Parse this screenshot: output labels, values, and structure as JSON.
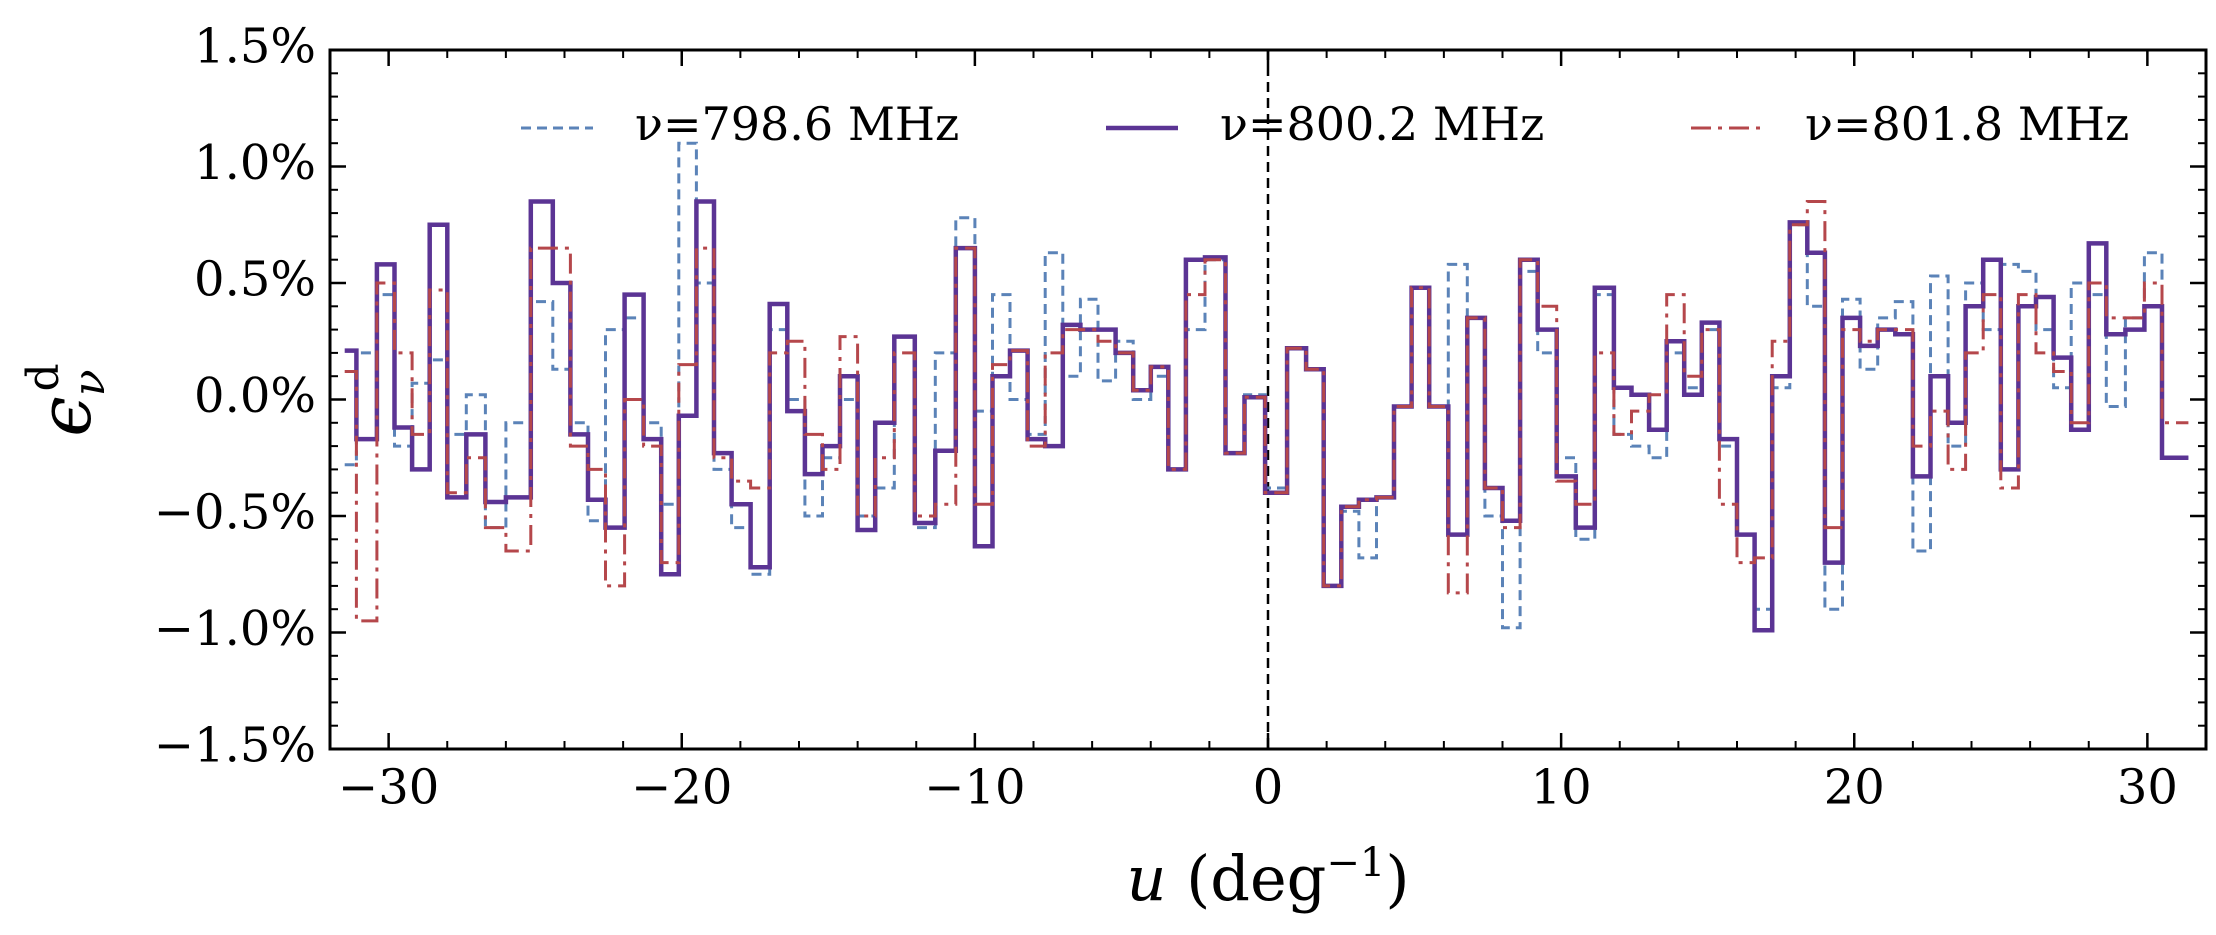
{
  "chart_data": {
    "type": "step",
    "xlabel": {
      "symbol": "u",
      "text": "(deg",
      "sup": "−1",
      "close": ")"
    },
    "ylabel": {
      "symbol": "ϵ",
      "sub": "ν",
      "sup": "d"
    },
    "xlim": [
      -32,
      32
    ],
    "ylim": [
      -1.5,
      1.5
    ],
    "xticks": [
      {
        "value": -30,
        "label": "−30"
      },
      {
        "value": -20,
        "label": "−20"
      },
      {
        "value": -10,
        "label": "−10"
      },
      0,
      10,
      20,
      30
    ],
    "yticks": [
      {
        "value": -1.5,
        "label": "−1.5%"
      },
      {
        "value": -1.0,
        "label": "−1.0%"
      },
      {
        "value": -0.5,
        "label": "−0.5%"
      },
      {
        "value": 0.0,
        "label": "0.0%"
      },
      {
        "value": 0.5,
        "label": "0.5%"
      },
      {
        "value": 1.0,
        "label": "1.0%"
      },
      {
        "value": 1.5,
        "label": "1.5%"
      }
    ],
    "vline": 0,
    "legend": "upper center",
    "x": [
      -31.5,
      -30.7,
      -30.1,
      -29.5,
      -28.9,
      -28.3,
      -27.7,
      -27.0,
      -26.4,
      -25.6,
      -24.7,
      -24.1,
      -23.5,
      -22.9,
      -22.3,
      -21.6,
      -21.0,
      -20.4,
      -19.8,
      -19.2,
      -18.6,
      -18.0,
      -17.3,
      -16.7,
      -16.1,
      -15.5,
      -14.9,
      -14.3,
      -13.7,
      -13.1,
      -12.4,
      -11.7,
      -11.0,
      -10.3,
      -9.7,
      -9.1,
      -8.5,
      -7.9,
      -7.3,
      -6.7,
      -6.1,
      -5.5,
      -4.9,
      -4.3,
      -3.7,
      -3.1,
      -2.5,
      -1.8,
      -1.1,
      -0.5,
      0.3,
      1.0,
      1.6,
      2.2,
      2.8,
      3.4,
      4.0,
      4.6,
      5.2,
      5.8,
      6.5,
      7.1,
      7.7,
      8.3,
      8.9,
      9.5,
      10.2,
      10.8,
      11.5,
      12.1,
      12.7,
      13.3,
      13.9,
      14.5,
      15.1,
      15.7,
      16.3,
      16.9,
      17.5,
      18.1,
      18.7,
      19.3,
      19.9,
      20.5,
      21.1,
      21.7,
      22.3,
      22.9,
      23.5,
      24.1,
      24.7,
      25.3,
      25.9,
      26.5,
      27.1,
      27.7,
      28.3,
      28.9,
      29.6,
      30.2,
      30.8,
      31.4
    ],
    "series": [
      {
        "name": "ν=798.6 MHz",
        "color": "#5b83b8",
        "style": "dashed",
        "values": [
          -0.28,
          0.2,
          0.45,
          -0.2,
          0.07,
          0.17,
          -0.15,
          0.02,
          -0.55,
          -0.1,
          0.42,
          0.13,
          -0.1,
          -0.52,
          0.3,
          0.35,
          -0.1,
          -0.45,
          1.1,
          0.5,
          -0.3,
          -0.55,
          -0.75,
          0.3,
          0.0,
          -0.5,
          -0.25,
          0.0,
          -0.5,
          -0.38,
          0.27,
          -0.55,
          0.2,
          0.78,
          -0.05,
          0.45,
          0.0,
          -0.15,
          0.63,
          0.1,
          0.43,
          0.08,
          0.25,
          0.0,
          0.1,
          -0.3,
          0.3,
          0.6,
          -0.23,
          0.02,
          -0.38,
          0.22,
          0.13,
          -0.8,
          -0.48,
          -0.68,
          -0.42,
          -0.03,
          0.48,
          -0.03,
          0.58,
          0.35,
          -0.5,
          -0.98,
          0.55,
          0.2,
          -0.25,
          -0.6,
          0.45,
          -0.15,
          -0.2,
          -0.25,
          0.2,
          0.05,
          0.3,
          -0.2,
          -0.58,
          -0.9,
          0.05,
          0.75,
          0.4,
          -0.9,
          0.43,
          0.13,
          0.35,
          0.42,
          -0.65,
          0.53,
          -0.2,
          0.5,
          0.3,
          0.58,
          0.55,
          0.3,
          0.05,
          0.5,
          0.45,
          -0.03,
          0.35,
          0.63,
          -0.25,
          -0.25
        ]
      },
      {
        "name": "ν=800.2 MHz",
        "color": "#5b3494",
        "style": "solid",
        "values": [
          0.21,
          -0.17,
          0.58,
          -0.12,
          -0.3,
          0.75,
          -0.42,
          -0.15,
          -0.44,
          -0.42,
          0.85,
          0.5,
          -0.15,
          -0.43,
          -0.55,
          0.45,
          -0.17,
          -0.75,
          -0.07,
          0.85,
          -0.23,
          -0.45,
          -0.72,
          0.41,
          -0.05,
          -0.32,
          -0.2,
          0.1,
          -0.56,
          -0.1,
          0.27,
          -0.53,
          -0.22,
          0.65,
          -0.63,
          0.1,
          0.21,
          -0.17,
          -0.2,
          0.32,
          0.3,
          0.3,
          0.2,
          0.04,
          0.14,
          -0.3,
          0.6,
          0.61,
          -0.23,
          0.01,
          -0.4,
          0.22,
          0.13,
          -0.8,
          -0.46,
          -0.43,
          -0.42,
          -0.03,
          0.48,
          -0.03,
          -0.58,
          0.35,
          -0.38,
          -0.52,
          0.6,
          0.3,
          -0.33,
          -0.55,
          0.48,
          0.05,
          0.02,
          -0.13,
          0.25,
          0.02,
          0.33,
          -0.17,
          -0.58,
          -0.99,
          0.1,
          0.76,
          0.63,
          -0.7,
          0.35,
          0.23,
          0.3,
          0.28,
          -0.33,
          0.1,
          -0.1,
          0.4,
          0.6,
          -0.3,
          0.4,
          0.44,
          0.18,
          -0.13,
          0.67,
          0.28,
          0.3,
          0.4,
          -0.25,
          -0.25
        ]
      },
      {
        "name": "ν=801.8 MHz",
        "color": "#b5474b",
        "style": "dashdot",
        "values": [
          0.12,
          -0.95,
          0.5,
          0.2,
          -0.15,
          0.47,
          -0.4,
          -0.25,
          -0.55,
          -0.65,
          0.65,
          0.65,
          -0.2,
          -0.3,
          -0.8,
          0.0,
          -0.2,
          -0.7,
          0.15,
          0.65,
          -0.25,
          -0.35,
          -0.38,
          0.2,
          0.25,
          -0.15,
          -0.3,
          0.27,
          -0.5,
          -0.25,
          0.2,
          -0.5,
          -0.45,
          0.65,
          -0.45,
          0.15,
          0.21,
          -0.2,
          0.2,
          0.3,
          0.3,
          0.25,
          0.2,
          0.04,
          0.14,
          -0.3,
          0.45,
          0.6,
          -0.23,
          0.01,
          -0.4,
          0.22,
          0.13,
          -0.8,
          -0.46,
          -0.43,
          -0.42,
          -0.03,
          0.48,
          -0.03,
          -0.83,
          0.35,
          -0.38,
          -0.55,
          0.6,
          0.4,
          -0.35,
          -0.45,
          0.2,
          -0.15,
          -0.05,
          0.02,
          0.45,
          0.1,
          0.3,
          -0.45,
          -0.7,
          -0.68,
          0.25,
          0.75,
          0.85,
          -0.55,
          0.3,
          0.25,
          0.3,
          0.3,
          -0.2,
          -0.05,
          -0.3,
          0.2,
          0.45,
          -0.38,
          0.45,
          0.2,
          0.12,
          -0.1,
          0.5,
          0.35,
          0.35,
          0.5,
          -0.1,
          -0.1
        ]
      }
    ]
  }
}
